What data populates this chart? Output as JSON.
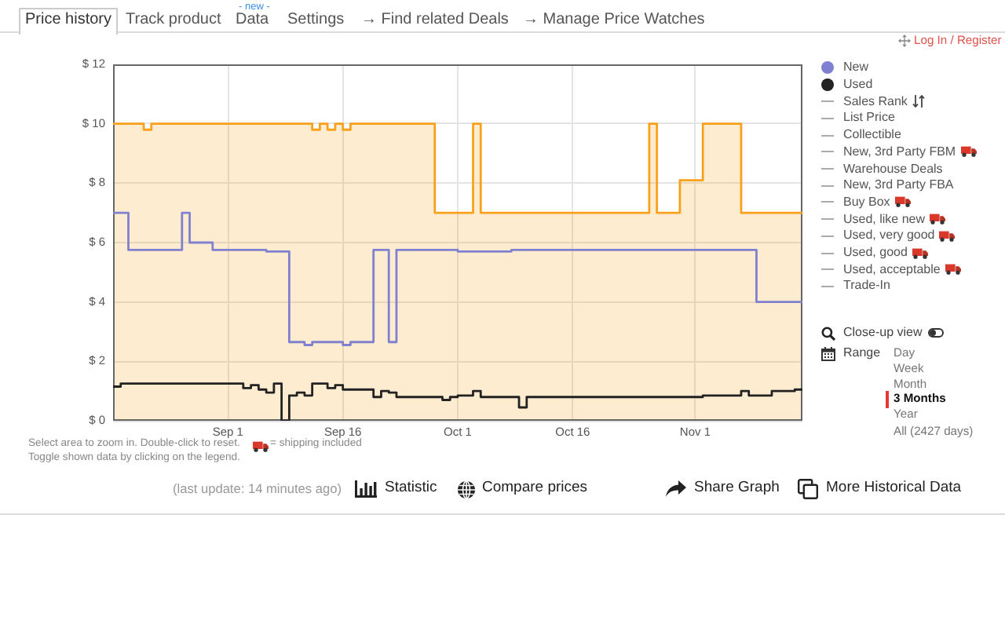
{
  "chart_data": {
    "type": "step",
    "xlim": [
      "--08-17",
      "--11-15"
    ],
    "xticks": [
      {
        "value": "--09-01",
        "label": "Sep 1"
      },
      {
        "value": "--09-16",
        "label": "Sep 16"
      },
      {
        "value": "--10-01",
        "label": "Oct 1"
      },
      {
        "value": "--10-16",
        "label": "Oct 16"
      },
      {
        "value": "--11-01",
        "label": "Nov 1"
      }
    ],
    "ylim": [
      0,
      12
    ],
    "yticks": [
      {
        "value": 0,
        "label": "$ 0"
      },
      {
        "value": 2,
        "label": "$ 2"
      },
      {
        "value": 4,
        "label": "$ 4"
      },
      {
        "value": 6,
        "label": "$ 6"
      },
      {
        "value": 8,
        "label": "$ 8"
      },
      {
        "value": 10,
        "label": "$ 10"
      },
      {
        "value": 12,
        "label": "$ 12"
      }
    ],
    "grid": true,
    "legend": "right",
    "series": [
      {
        "type": "area",
        "color": "#f9a11b",
        "x": [
          "--08-17",
          "--08-21",
          "--08-21",
          "--08-22",
          "--08-22",
          "--09-12",
          "--09-12",
          "--09-13",
          "--09-13",
          "--09-14",
          "--09-14",
          "--09-15",
          "--09-15",
          "--09-16",
          "--09-16",
          "--09-17",
          "--09-17",
          "--09-28",
          "--09-28",
          "--10-03",
          "--10-03",
          "--10-04",
          "--10-04",
          "--10-26",
          "--10-26",
          "--10-27",
          "--10-27",
          "--10-30",
          "--10-30",
          "--11-02",
          "--11-02",
          "--11-07",
          "--11-07",
          "--11-15"
        ],
        "values": [
          10,
          10,
          9.8,
          9.8,
          10,
          10,
          9.8,
          9.8,
          10,
          10,
          9.8,
          9.8,
          10,
          10,
          9.8,
          9.8,
          10,
          10,
          7,
          7,
          10,
          10,
          7,
          7,
          10,
          10,
          7,
          7,
          8.1,
          8.1,
          10,
          10,
          7,
          7
        ]
      },
      {
        "name": "New",
        "color": "#8080d0",
        "x": [
          "--08-17",
          "--08-19",
          "--08-26",
          "--08-27",
          "--08-30",
          "--09-06",
          "--09-09",
          "--09-11",
          "--09-12",
          "--09-16",
          "--09-17",
          "--09-20",
          "--09-22",
          "--09-23",
          "--10-01",
          "--10-08",
          "--11-09",
          "--11-15"
        ],
        "values": [
          7,
          5.75,
          7,
          6,
          5.75,
          5.7,
          2.65,
          2.55,
          2.65,
          2.55,
          2.65,
          5.75,
          2.65,
          5.75,
          5.7,
          5.75,
          4,
          4
        ]
      },
      {
        "name": "Used",
        "color": "#222222",
        "x": [
          "--08-17",
          "--08-18",
          "--09-03",
          "--09-04",
          "--09-05",
          "--09-06",
          "--09-07",
          "--09-08",
          "--09-09",
          "--09-10",
          "--09-11",
          "--09-12",
          "--09-14",
          "--09-15",
          "--09-16",
          "--09-20",
          "--09-21",
          "--09-22",
          "--09-23",
          "--09-29",
          "--09-30",
          "--10-01",
          "--10-03",
          "--10-04",
          "--10-09",
          "--10-10",
          "--11-02",
          "--11-07",
          "--11-08",
          "--11-11",
          "--11-14",
          "--11-15"
        ],
        "values": [
          1.15,
          1.25,
          1.1,
          1.2,
          1.05,
          0.95,
          1.25,
          0,
          0.85,
          0.95,
          0.85,
          1.25,
          1.1,
          1.2,
          1.05,
          0.8,
          1,
          0.95,
          0.8,
          0.7,
          0.8,
          0.85,
          1,
          0.8,
          0.45,
          0.8,
          0.85,
          1,
          0.85,
          1,
          1.05,
          1.05
        ]
      },
      {
        "name": "Sales Rank",
        "color": "#aaaaaa"
      },
      {
        "name": "List Price",
        "color": "#aaaaaa"
      },
      {
        "name": "Collectible",
        "color": "#aaaaaa"
      },
      {
        "name": "New, 3rd Party FBM",
        "color": "#aaaaaa"
      },
      {
        "name": "Warehouse Deals",
        "color": "#aaaaaa"
      },
      {
        "name": "New, 3rd Party FBA",
        "color": "#aaaaaa"
      },
      {
        "name": "Buy Box",
        "color": "#aaaaaa"
      },
      {
        "name": "Used, like new",
        "color": "#aaaaaa"
      },
      {
        "name": "Used, very good",
        "color": "#aaaaaa"
      },
      {
        "name": "Used, good",
        "color": "#aaaaaa"
      },
      {
        "name": "Used, acceptable",
        "color": "#aaaaaa"
      },
      {
        "name": "Trade-In",
        "color": "#aaaaaa"
      }
    ],
    "annotations": [
      "Price history",
      "Track product",
      "- new -",
      "Data",
      "Settings",
      "→ Find related Deals",
      "→ Manage Price Watches",
      "Log In / Register",
      "Close-up view",
      "Range",
      "Day",
      "Week",
      "Month",
      "3 Months",
      "Year",
      "All (2427 days)",
      "Select area to zoom in. Double-click to reset.",
      "= shipping included",
      "Toggle shown data by clicking on the legend.",
      "(last update: 14 minutes ago)",
      "Statistic",
      "Compare prices",
      "Share Graph",
      "More Historical Data"
    ]
  }
}
